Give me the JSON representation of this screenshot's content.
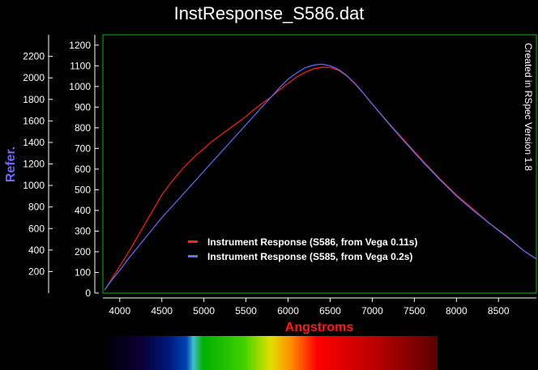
{
  "chart_data": {
    "type": "line",
    "title": "InstResponse_S586.dat",
    "xlabel": "Angstroms",
    "ylabel": "Refer.",
    "side_note": "Created in RSpec Version 1.8",
    "xlim": [
      3800,
      8950
    ],
    "ylim": [
      0,
      1250
    ],
    "y2lim": [
      0,
      2400
    ],
    "x_ticks": [
      4000,
      4500,
      5000,
      5500,
      6000,
      6500,
      7000,
      7500,
      8000,
      8500
    ],
    "y_ticks": [
      0,
      100,
      200,
      300,
      400,
      500,
      600,
      700,
      800,
      900,
      1000,
      1100,
      1200
    ],
    "y2_ticks": [
      200,
      400,
      600,
      800,
      1000,
      1200,
      1400,
      1600,
      1800,
      2000,
      2200
    ],
    "legend_position": "lower-center",
    "series": [
      {
        "name": "Instrument Response (S586, from Vega 0.11s)",
        "color": "#ff2020",
        "x": [
          3820,
          3900,
          4000,
          4100,
          4200,
          4300,
          4400,
          4500,
          4600,
          4700,
          4800,
          4900,
          5000,
          5100,
          5200,
          5300,
          5400,
          5500,
          5600,
          5700,
          5800,
          5900,
          6000,
          6100,
          6200,
          6300,
          6400,
          6500,
          6600,
          6700,
          6800,
          6900,
          7000,
          7200,
          7400,
          7600,
          7800,
          8000,
          8200,
          8400,
          8600,
          8800,
          8950
        ],
        "values": [
          15,
          65,
          130,
          195,
          265,
          335,
          405,
          475,
          530,
          580,
          625,
          665,
          700,
          735,
          765,
          795,
          825,
          855,
          890,
          920,
          950,
          985,
          1015,
          1045,
          1068,
          1085,
          1093,
          1092,
          1078,
          1050,
          1010,
          965,
          915,
          820,
          730,
          640,
          555,
          475,
          405,
          335,
          275,
          205,
          165
        ]
      },
      {
        "name": "Instrument Response (S585, from Vega 0.2s)",
        "color": "#6070ff",
        "x": [
          3820,
          3900,
          4000,
          4100,
          4200,
          4300,
          4400,
          4500,
          4600,
          4700,
          4800,
          4900,
          5000,
          5100,
          5200,
          5300,
          5400,
          5500,
          5600,
          5700,
          5800,
          5900,
          6000,
          6100,
          6200,
          6300,
          6400,
          6500,
          6600,
          6700,
          6800,
          6900,
          7000,
          7200,
          7400,
          7600,
          7800,
          8000,
          8200,
          8400,
          8600,
          8800,
          8950
        ],
        "values": [
          15,
          60,
          110,
          165,
          215,
          265,
          315,
          365,
          410,
          455,
          500,
          545,
          590,
          635,
          680,
          725,
          770,
          815,
          860,
          905,
          950,
          995,
          1035,
          1065,
          1090,
          1103,
          1108,
          1100,
          1082,
          1052,
          1012,
          965,
          915,
          818,
          725,
          635,
          550,
          470,
          400,
          335,
          272,
          205,
          165
        ]
      }
    ]
  },
  "colors": {
    "background": "#000000",
    "plot_border": "#00c000",
    "axis_line": "#ffffff"
  }
}
